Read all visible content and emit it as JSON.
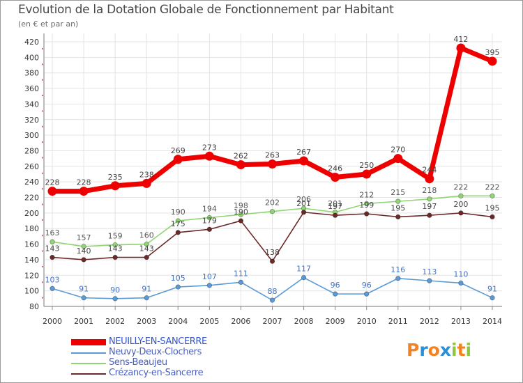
{
  "header": {
    "title": "Evolution de la Dotation Globale de Fonctionnement par Habitant",
    "subtitle": "(en € et par an)"
  },
  "brand": {
    "text": "Proxiti",
    "letter_colors": [
      "#f58220",
      "#2a8fd6",
      "#f58220",
      "#2a8fd6",
      "#8dc63f",
      "#f58220",
      "#8dc63f"
    ]
  },
  "chart_data": {
    "type": "line",
    "title": "Evolution de la Dotation Globale de Fonctionnement par Habitant",
    "subtitle": "(en € et par an)",
    "xlabel": "",
    "ylabel": "",
    "x": [
      "2000",
      "2001",
      "2002",
      "2003",
      "2004",
      "2005",
      "2006",
      "2007",
      "2008",
      "2009",
      "2010",
      "2011",
      "2012",
      "2013",
      "2014"
    ],
    "ylim": [
      80,
      420
    ],
    "yticks": [
      80,
      100,
      120,
      140,
      160,
      180,
      200,
      220,
      240,
      260,
      280,
      300,
      320,
      340,
      360,
      380,
      400,
      420
    ],
    "grid": true,
    "legend_position": "bottom-left",
    "series": [
      {
        "name": "NEUILLY-EN-SANCERRE",
        "color": "#ee0000",
        "label_color": "#444444",
        "style": "thick",
        "values": [
          228,
          228,
          235,
          238,
          269,
          273,
          262,
          263,
          267,
          246,
          250,
          270,
          244,
          412,
          395
        ]
      },
      {
        "name": "Neuvy-Deux-Clochers",
        "color": "#5b9bd5",
        "label_color": "#4472c4",
        "style": "thin",
        "values": [
          103,
          91,
          90,
          91,
          105,
          107,
          111,
          88,
          117,
          96,
          96,
          116,
          113,
          110,
          91
        ]
      },
      {
        "name": "Sens-Beaujeu",
        "color": "#8fd672",
        "label_color": "#555555",
        "style": "thin",
        "values": [
          163,
          157,
          159,
          160,
          190,
          194,
          198,
          202,
          206,
          201,
          212,
          215,
          218,
          222,
          222
        ]
      },
      {
        "name": "Crézancy-en-Sancerre",
        "color": "#6b2a2a",
        "label_color": "#444444",
        "style": "thin",
        "values": [
          143,
          140,
          143,
          143,
          175,
          179,
          190,
          138,
          201,
          197,
          199,
          195,
          197,
          200,
          195
        ]
      }
    ]
  }
}
